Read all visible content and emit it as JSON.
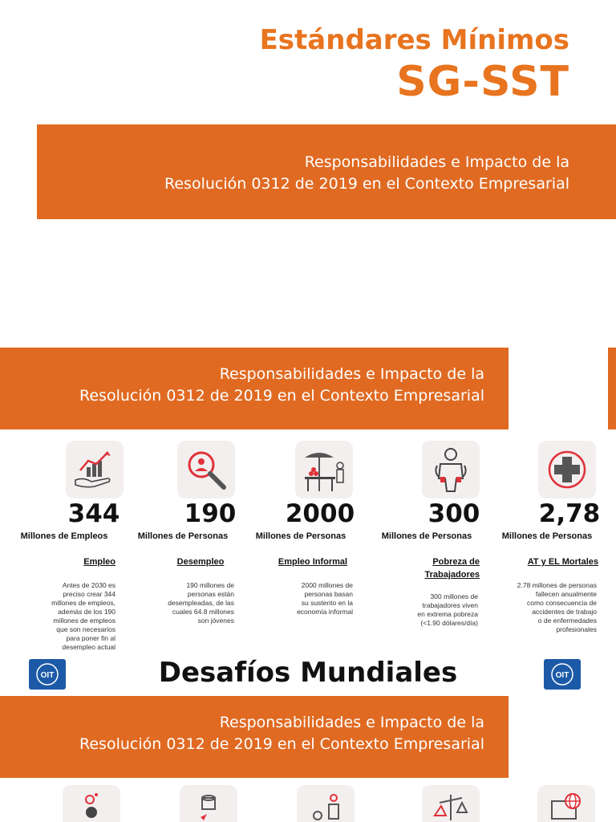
{
  "header": {
    "title_line1": "Estándares Mínimos",
    "title_line2": "SG-SST"
  },
  "banner": {
    "line1": "Responsabilidades e Impacto de la",
    "line2": "Resolución 0312 de 2019 en el Contexto Empresarial"
  },
  "stats": [
    {
      "icon": "growth-chart-hand-icon",
      "number": "344",
      "unit": "Millones de Empleos",
      "category": "Empleo",
      "description": [
        "Antes de 2030 es",
        "preciso crear 344",
        "millones de empleos,",
        "además de los 190",
        "millones de empleos",
        "que son necesarios",
        "para poner fin al",
        "desempleo actual"
      ]
    },
    {
      "icon": "magnifier-person-icon",
      "number": "190",
      "unit": "Millones de Personas",
      "category": "Desempleo",
      "description": [
        "190 millones de",
        "personas están",
        "desempleadas, de las",
        "cuales 64.8 millones",
        "son jóvenes"
      ]
    },
    {
      "icon": "street-vendor-icon",
      "number": "2000",
      "unit": "Millones de Personas",
      "category": "Empleo Informal",
      "description": [
        "2000 millones de",
        "personas basan",
        "su sustento en la",
        "economía informal"
      ]
    },
    {
      "icon": "empty-pockets-worker-icon",
      "number": "300",
      "unit": "Millones de Personas",
      "category": "Pobreza de Trabajadores",
      "description": [
        "300 millones de",
        "trabajadores viven",
        "en extrema pobreza",
        "(<1.90 dólares/día)"
      ]
    },
    {
      "icon": "medical-cross-icon",
      "number": "2,78",
      "unit": "Millones de Personas",
      "category": "AT y EL Mortales",
      "description": [
        "2.78 millones de personas",
        "fallecen anualmente",
        "como consecuencia de",
        "accidentes de trabajo",
        "o de enfermedades",
        "profesionales"
      ]
    }
  ],
  "section": {
    "heading": "Desafíos Mundiales",
    "logo_text": "OIT"
  },
  "bottom_icons": [
    "gear-clock-icon",
    "coins-icon",
    "gender-coins-icon",
    "balance-scale-icon",
    "globe-screen-icon"
  ],
  "colors": {
    "accent": "#e06a22",
    "title": "#e8741f",
    "tile": "#f3efee",
    "logo": "#1c5aa8"
  }
}
